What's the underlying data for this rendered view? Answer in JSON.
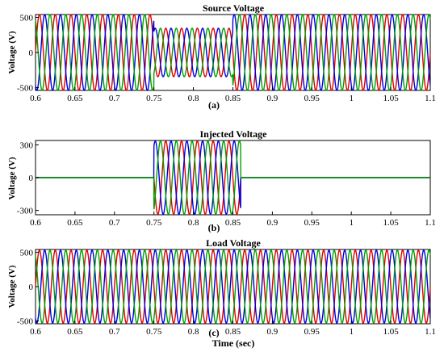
{
  "chart_data": [
    {
      "type": "line",
      "title": "Source Voltage",
      "panel_label": "(a)",
      "xlabel": "",
      "ylabel": "Voltage (V)",
      "xlim": [
        0.6,
        1.1
      ],
      "ylim": [
        -540,
        540
      ],
      "x_ticks": [
        "0.6",
        "0.65",
        "0.7",
        "0.75",
        "0.8",
        "0.85",
        "0.9",
        "0.95",
        "1",
        "1.05",
        "1.1"
      ],
      "y_ticks": [
        "500",
        "0",
        "-500"
      ],
      "frequency_hz": 50,
      "waveform": "three-phase sinusoid",
      "series": [
        {
          "color": "#e00000",
          "phase_deg": 0
        },
        {
          "color": "#0000e0",
          "phase_deg": -120
        },
        {
          "color": "#00a000",
          "phase_deg": 120
        }
      ],
      "segments": [
        {
          "x_start": 0.6,
          "x_end": 0.75,
          "amplitude": 540
        },
        {
          "x_start": 0.75,
          "x_end": 0.85,
          "amplitude": 345
        },
        {
          "x_start": 0.85,
          "x_end": 1.1,
          "amplitude": 540
        }
      ]
    },
    {
      "type": "line",
      "title": "Injected Voltage",
      "panel_label": "(b)",
      "xlabel": "",
      "ylabel": "Voltage (V)",
      "xlim": [
        0.6,
        1.1
      ],
      "ylim": [
        -340,
        340
      ],
      "x_ticks": [
        "0.6",
        "0.65",
        "0.7",
        "0.75",
        "0.8",
        "0.85",
        "0.9",
        "0.95",
        "1",
        "1.05",
        "1.1"
      ],
      "y_ticks": [
        "300",
        "0",
        "-300"
      ],
      "frequency_hz": 50,
      "waveform": "three-phase sinusoid",
      "series": [
        {
          "color": "#e00000",
          "phase_deg": 0
        },
        {
          "color": "#0000e0",
          "phase_deg": -120
        },
        {
          "color": "#00a000",
          "phase_deg": 120
        }
      ],
      "segments": [
        {
          "x_start": 0.6,
          "x_end": 0.75,
          "amplitude": 0
        },
        {
          "x_start": 0.75,
          "x_end": 0.86,
          "amplitude": 335
        },
        {
          "x_start": 0.86,
          "x_end": 1.1,
          "amplitude": 0
        }
      ]
    },
    {
      "type": "line",
      "title": "Load Voltage",
      "panel_label": "(c)",
      "xlabel": "Time (sec)",
      "ylabel": "Voltage (V)",
      "xlim": [
        0.6,
        1.1
      ],
      "ylim": [
        -540,
        540
      ],
      "x_ticks": [
        "0.6",
        "0.65",
        "0.7",
        "0.75",
        "0.8",
        "0.85",
        "0.9",
        "0.95",
        "1",
        "1.05",
        "1.1"
      ],
      "y_ticks": [
        "500",
        "0",
        "-500"
      ],
      "frequency_hz": 50,
      "waveform": "three-phase sinusoid",
      "series": [
        {
          "color": "#e00000",
          "phase_deg": 0
        },
        {
          "color": "#0000e0",
          "phase_deg": -120
        },
        {
          "color": "#00a000",
          "phase_deg": 120
        }
      ],
      "segments": [
        {
          "x_start": 0.6,
          "x_end": 1.1,
          "amplitude": 530
        }
      ]
    }
  ]
}
